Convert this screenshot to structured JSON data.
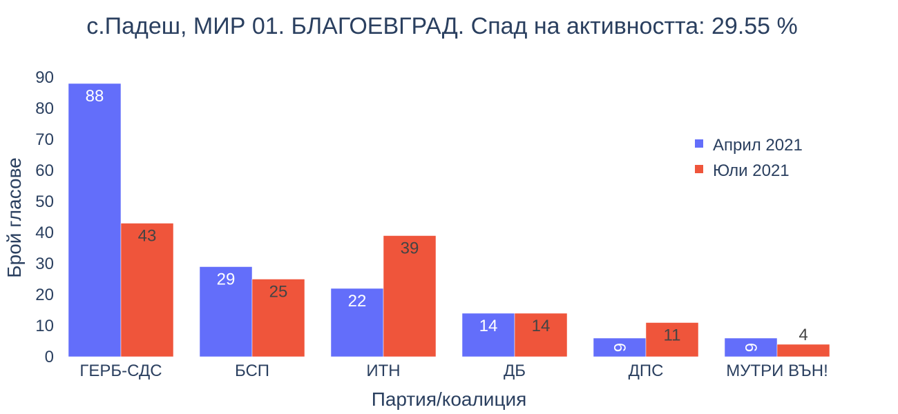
{
  "chart_data": {
    "type": "bar",
    "title": "с.Падеш, МИР 01. БЛАГОЕВГРАД. Спад на активността: 29.55 %",
    "xlabel": "Партия/коалиция",
    "ylabel": "Брой гласове",
    "categories": [
      "ГЕРБ-СДС",
      "БСП",
      "ИТН",
      "ДБ",
      "ДПС",
      "МУТРИ ВЪН!"
    ],
    "series": [
      {
        "name": "Април 2021",
        "color": "#636efa",
        "values": [
          88,
          29,
          22,
          14,
          6,
          6
        ]
      },
      {
        "name": "Юли 2021",
        "color": "#ef553b",
        "values": [
          43,
          25,
          39,
          14,
          11,
          4
        ]
      }
    ],
    "ylim": [
      0,
      90
    ],
    "yticks": [
      0,
      10,
      20,
      30,
      40,
      50,
      60,
      70,
      80,
      90
    ],
    "grid": false,
    "legend_position": "top-right",
    "bar_label_colors": {
      "inside_first": "#ffffff",
      "inside_second": "#444444"
    }
  }
}
